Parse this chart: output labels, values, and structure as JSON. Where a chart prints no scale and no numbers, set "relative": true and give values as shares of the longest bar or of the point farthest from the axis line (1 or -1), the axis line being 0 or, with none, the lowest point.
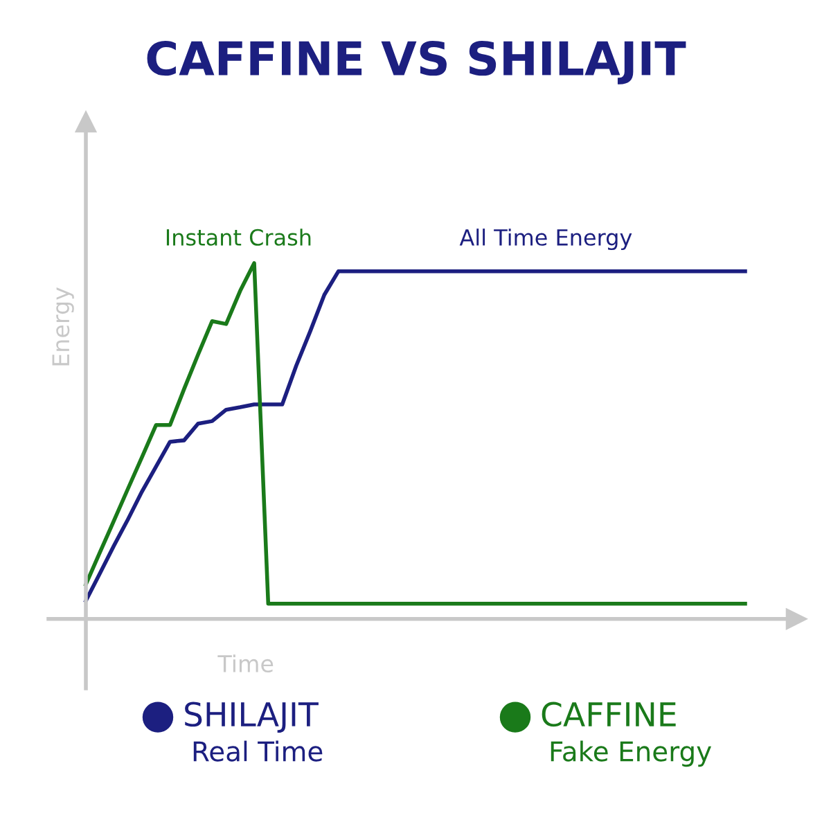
{
  "chart_data": {
    "type": "line",
    "title": "CAFFINE VS SHILAJIT",
    "xlabel": "Time",
    "ylabel": "Energy",
    "relative": true,
    "legend": "bottom",
    "categories": [
      null,
      null,
      null,
      null,
      null,
      null,
      null,
      null,
      null,
      null,
      null,
      null,
      null,
      null,
      null,
      null,
      null,
      null,
      null,
      null,
      null,
      null,
      null,
      null,
      null,
      null,
      null,
      null,
      null,
      null,
      null,
      null,
      null,
      null,
      null,
      null,
      null,
      null,
      null,
      null,
      null,
      null,
      null,
      null,
      null,
      null,
      null,
      null
    ],
    "series": [
      {
        "name": "SHILAJIT",
        "color": "#1c1f80",
        "values": [
          0.051,
          0.128,
          0.206,
          0.28,
          0.358,
          0.428,
          0.498,
          0.502,
          0.549,
          0.556,
          0.588,
          0.595,
          0.603,
          0.603,
          0.603,
          0.712,
          0.809,
          0.911,
          0.977,
          0.977,
          0.977,
          0.977,
          0.977,
          0.977,
          0.977,
          0.977,
          0.977,
          0.977,
          0.977,
          0.977,
          0.977,
          0.977,
          0.977,
          0.977,
          0.977,
          0.977,
          0.977,
          0.977,
          0.977,
          0.977,
          0.977,
          0.977,
          0.977,
          0.977,
          0.977,
          0.977,
          0.977,
          0.977
        ]
      },
      {
        "name": "CAFFINE",
        "color": "#1a7a1a",
        "values": [
          0.097,
          0.187,
          0.276,
          0.366,
          0.455,
          0.545,
          0.545,
          0.646,
          0.743,
          0.837,
          0.829,
          0.922,
          1,
          0.043,
          0.043,
          0.043,
          0.043,
          0.043,
          0.043,
          0.043,
          0.043,
          0.043,
          0.043,
          0.043,
          0.043,
          0.043,
          0.043,
          0.043,
          0.043,
          0.043,
          0.043,
          0.043,
          0.043,
          0.043,
          0.043,
          0.043,
          0.043,
          0.043,
          0.043,
          0.043,
          0.043,
          0.043,
          0.043,
          0.043,
          0.043,
          0.043,
          0.043,
          0.043
        ]
      }
    ],
    "annotations": [
      "Real Time",
      "Fake Energy",
      "Instant Crash",
      "All Time Energy"
    ]
  }
}
